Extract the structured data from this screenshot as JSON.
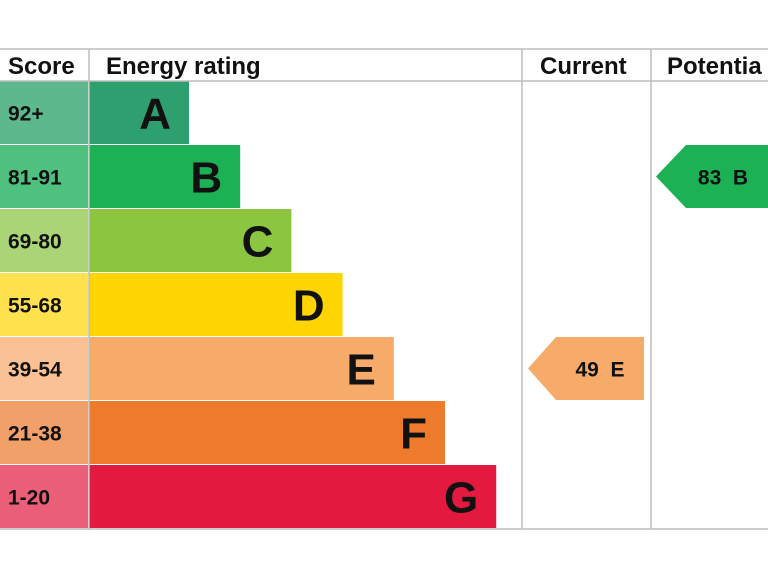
{
  "chart_data": {
    "type": "table",
    "headers": {
      "score": "Score",
      "energy_rating": "Energy rating",
      "current": "Current",
      "potential": "Potentia"
    },
    "bands": [
      {
        "score": "92+",
        "letter": "A",
        "color": "#2E9F6E",
        "score_bg": "#5DB88D"
      },
      {
        "score": "81-91",
        "letter": "B",
        "color": "#1DB155",
        "score_bg": "#4FC07D"
      },
      {
        "score": "69-80",
        "letter": "C",
        "color": "#8CC540",
        "score_bg": "#AAD476"
      },
      {
        "score": "55-68",
        "letter": "D",
        "color": "#FFD400",
        "score_bg": "#FFE24D"
      },
      {
        "score": "39-54",
        "letter": "E",
        "color": "#F7AB6A",
        "score_bg": "#F9C194"
      },
      {
        "score": "21-38",
        "letter": "F",
        "color": "#EE7B2B",
        "score_bg": "#F2A06A"
      },
      {
        "score": "1-20",
        "letter": "G",
        "color": "#E3193F",
        "score_bg": "#EB5E78"
      }
    ],
    "current": {
      "value": 49,
      "letter": "E",
      "label": "49  E",
      "color": "#F7AB6A"
    },
    "potential": {
      "value": 83,
      "letter": "B",
      "label": "83  B",
      "color": "#1DB155"
    },
    "border_color": "#BDBDBD"
  }
}
